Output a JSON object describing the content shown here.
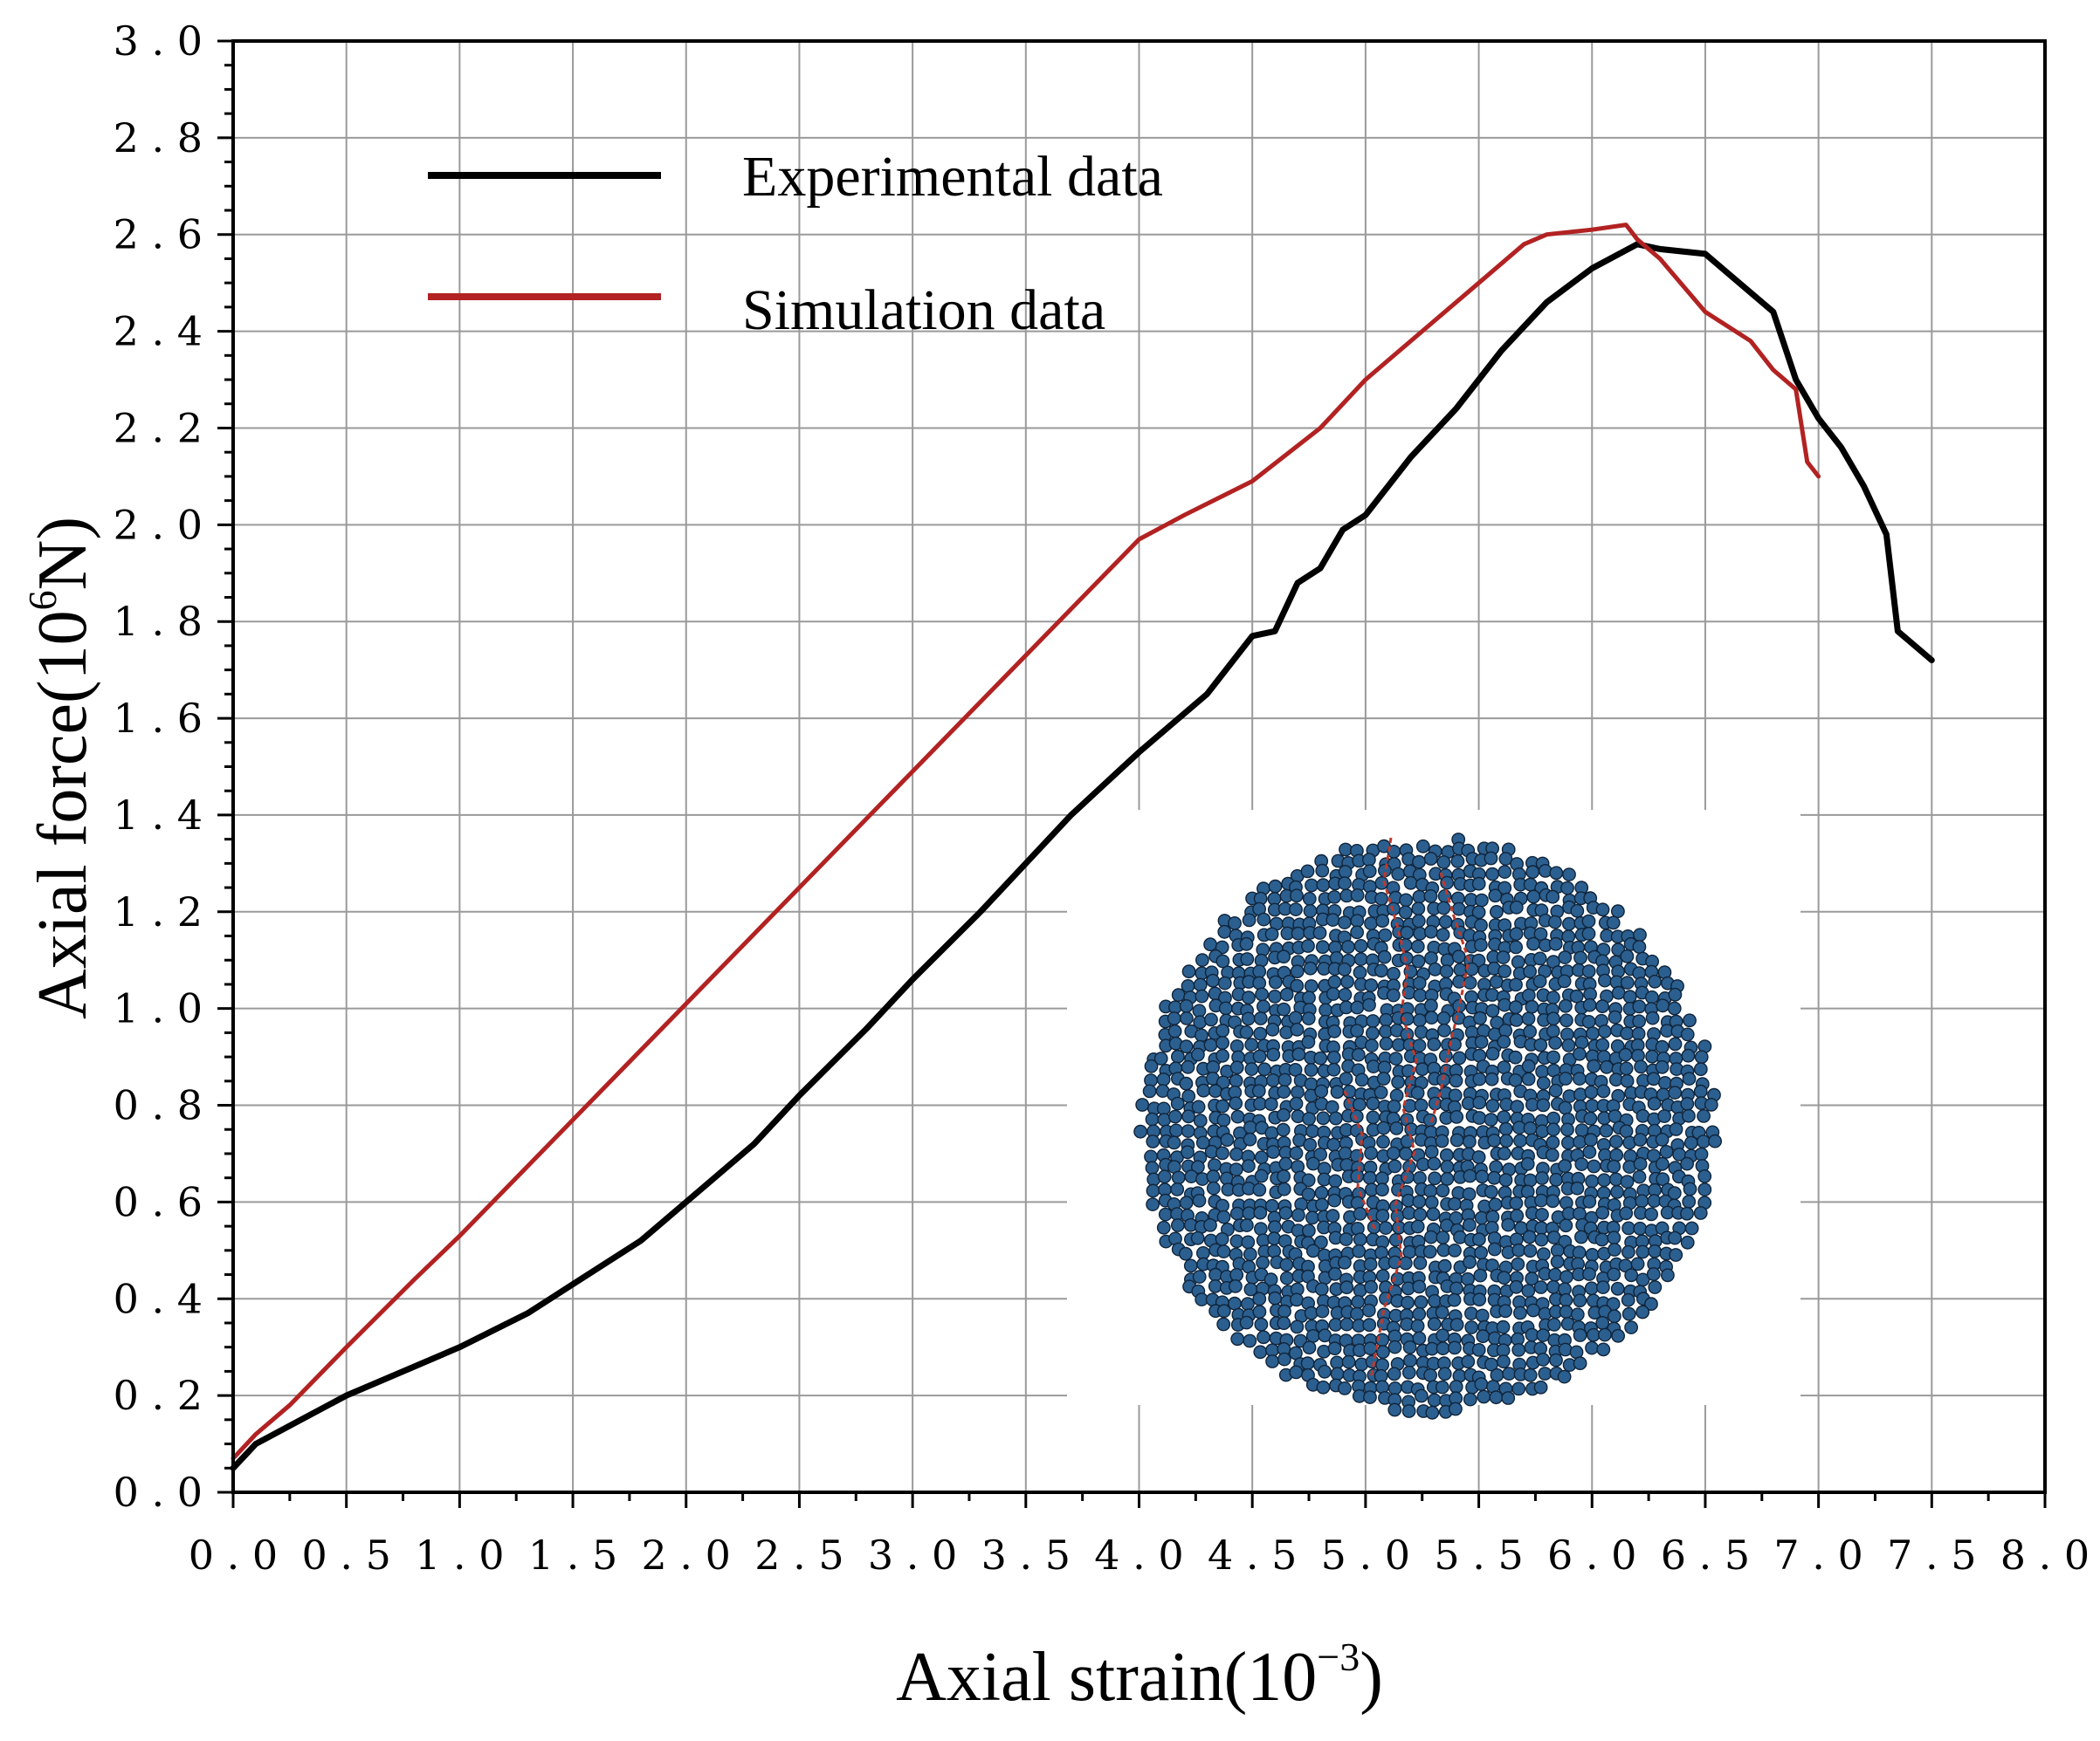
{
  "chart_data": {
    "type": "line",
    "xlabel_main": "Axial strain(10",
    "xlabel_sup": "−3",
    "xlabel_end": ")",
    "ylabel_main": "Axial force(10",
    "ylabel_sup": "6",
    "ylabel_end": "N)",
    "xlim": [
      0,
      8.0
    ],
    "ylim": [
      0,
      3.0
    ],
    "x_ticks": [
      "0.0",
      "0.5",
      "1.0",
      "1.5",
      "2.0",
      "2.5",
      "3.0",
      "3.5",
      "4.0",
      "4.5",
      "5.0",
      "5.5",
      "6.0",
      "6.5",
      "7.0",
      "7.5",
      "8.0"
    ],
    "y_ticks": [
      "0.0",
      "0.2",
      "0.4",
      "0.6",
      "0.8",
      "1.0",
      "1.2",
      "1.4",
      "1.6",
      "1.8",
      "2.0",
      "2.2",
      "2.4",
      "2.6",
      "2.8",
      "3.0"
    ],
    "grid": true,
    "legend": "top-left",
    "series": [
      {
        "name": "Experimental data",
        "color": "#000000",
        "x": [
          0.0,
          0.1,
          0.3,
          0.5,
          0.7,
          1.0,
          1.3,
          1.5,
          1.8,
          2.0,
          2.3,
          2.5,
          2.8,
          3.0,
          3.3,
          3.5,
          3.7,
          4.0,
          4.3,
          4.5,
          4.6,
          4.7,
          4.8,
          4.9,
          5.0,
          5.2,
          5.4,
          5.6,
          5.8,
          6.0,
          6.2,
          6.3,
          6.5,
          6.6,
          6.8,
          6.9,
          7.0,
          7.1,
          7.2,
          7.3,
          7.35,
          7.4,
          7.5
        ],
        "y": [
          0.05,
          0.1,
          0.15,
          0.2,
          0.24,
          0.3,
          0.37,
          0.43,
          0.52,
          0.6,
          0.72,
          0.82,
          0.96,
          1.06,
          1.2,
          1.3,
          1.4,
          1.53,
          1.65,
          1.77,
          1.78,
          1.88,
          1.91,
          1.99,
          2.02,
          2.14,
          2.24,
          2.36,
          2.46,
          2.53,
          2.58,
          2.57,
          2.56,
          2.52,
          2.44,
          2.3,
          2.22,
          2.16,
          2.08,
          1.98,
          1.78,
          1.76,
          1.72
        ]
      },
      {
        "name": "Simulation data",
        "color": "#b22222",
        "x": [
          0.0,
          0.1,
          0.25,
          0.5,
          0.8,
          1.0,
          1.5,
          2.0,
          2.5,
          3.0,
          3.5,
          4.0,
          4.2,
          4.5,
          4.8,
          5.0,
          5.3,
          5.5,
          5.7,
          5.8,
          6.0,
          6.15,
          6.2,
          6.3,
          6.5,
          6.7,
          6.8,
          6.9,
          6.95,
          7.0
        ],
        "y": [
          0.07,
          0.12,
          0.18,
          0.3,
          0.44,
          0.53,
          0.77,
          1.01,
          1.25,
          1.49,
          1.73,
          1.97,
          2.02,
          2.09,
          2.2,
          2.3,
          2.42,
          2.5,
          2.58,
          2.6,
          2.61,
          2.62,
          2.59,
          2.55,
          2.44,
          2.38,
          2.32,
          2.28,
          2.13,
          2.1
        ]
      }
    ],
    "inset": {
      "description_color_particles": "#2b5f8f",
      "description_color_cracks": "#c0392b"
    }
  }
}
